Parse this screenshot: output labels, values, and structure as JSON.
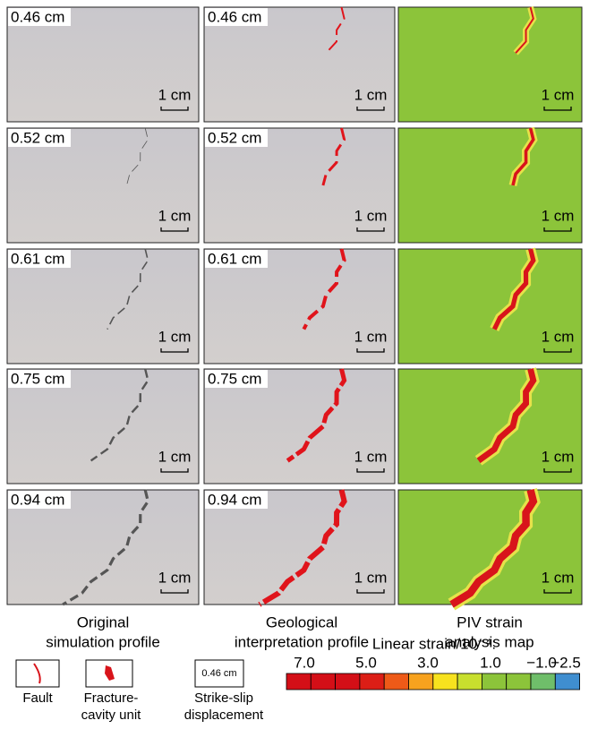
{
  "panels": {
    "displacements": [
      "0.46 cm",
      "0.52 cm",
      "0.61 cm",
      "0.75 cm",
      "0.94 cm"
    ],
    "scale_bar": "1 cm"
  },
  "column_titles": [
    [
      "Original",
      "simulation profile"
    ],
    [
      "Geological",
      "interpretation profile"
    ],
    [
      "PIV strain",
      "analysis map"
    ]
  ],
  "legend": {
    "fault": "Fault",
    "fracture": [
      "Fracture-",
      "cavity unit"
    ],
    "strike_slip_sample": "0.46 cm",
    "strike_slip": [
      "Strike-slip",
      "displacement"
    ]
  },
  "colorbar": {
    "title": "Linear strain/10⁻⁴:",
    "ticks": [
      "7.0",
      "5.0",
      "3.0",
      "1.0",
      "−1.0",
      "−2.5"
    ]
  }
}
